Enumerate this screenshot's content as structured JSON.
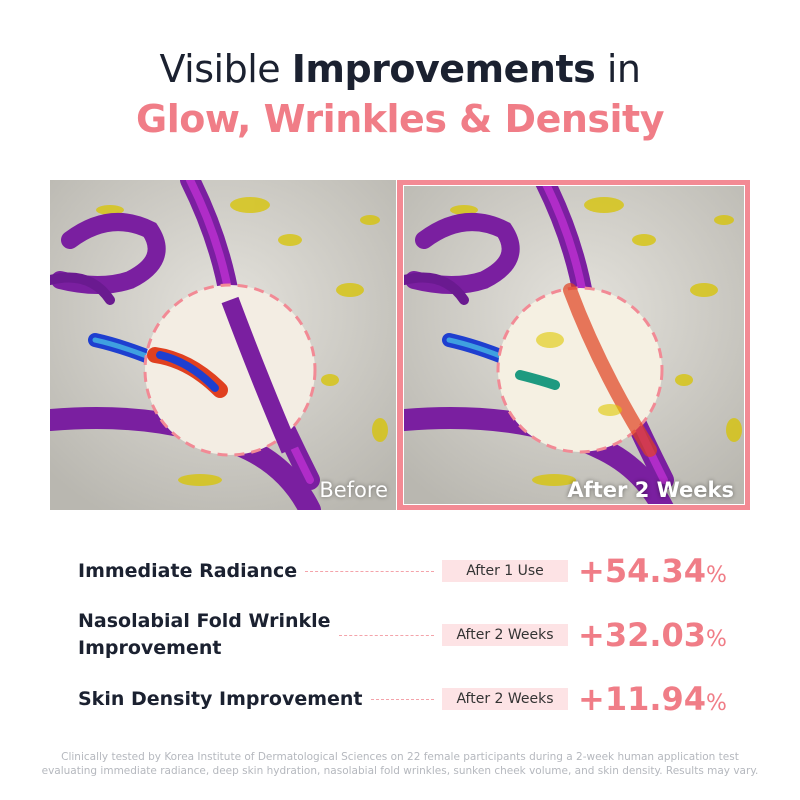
{
  "header": {
    "title_parts": [
      "Visible ",
      "Improvements",
      " in"
    ],
    "title_line2": "Glow, Wrinkles & Density"
  },
  "images": {
    "before_label": "Before",
    "after_label": "After 2 Weeks"
  },
  "stats": [
    {
      "label": "Immediate Radiance",
      "period": "After 1 Use",
      "value": "+54.34",
      "unit": "%"
    },
    {
      "label": "Nasolabial Fold Wrinkle\nImprovement",
      "period": "After 2 Weeks",
      "value": "+32.03",
      "unit": "%"
    },
    {
      "label": "Skin Density Improvement",
      "period": "After 2 Weeks",
      "value": "+11.94",
      "unit": "%"
    }
  ],
  "footnote": "Clinically tested by Korea Institute of Dermatological Sciences on 22 female participants during a 2-week human application test evaluating immediate radiance, deep skin hydration, nasolabial fold wrinkles, sunken cheek volume, and skin density. Results may vary."
}
